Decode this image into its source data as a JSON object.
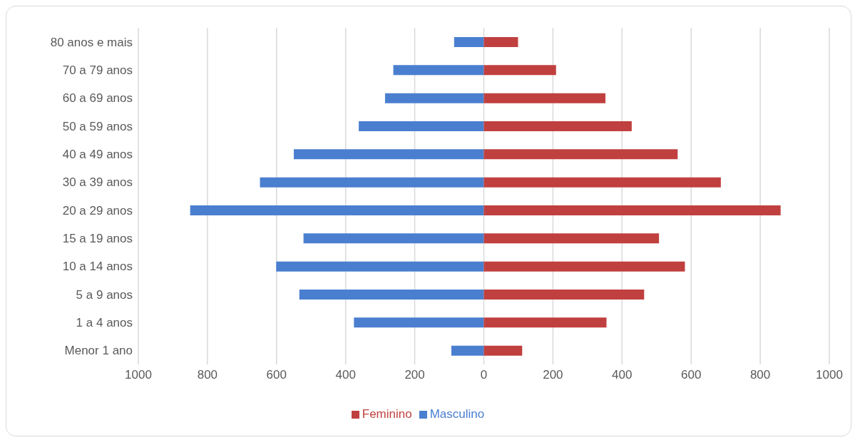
{
  "chart_data": {
    "type": "bar",
    "orientation": "horizontal",
    "stacked": true,
    "categories": [
      "80 anos e mais",
      "70 a 79 anos",
      "60 a 69 anos",
      "50 a 59 anos",
      "40 a 49 anos",
      "30 a 39 anos",
      "20 a 29 anos",
      "15 a 19 anos",
      "10 a 14 anos",
      "5 a 9 anos",
      "1 a 4 anos",
      "Menor 1 ano"
    ],
    "series": [
      {
        "name": "Masculino",
        "color": "#4a7fd0",
        "values": [
          -86,
          -262,
          -286,
          -362,
          -550,
          -648,
          -850,
          -522,
          -601,
          -534,
          -376,
          -94
        ]
      },
      {
        "name": "Feminino",
        "color": "#c0403f",
        "values": [
          99,
          209,
          352,
          428,
          561,
          686,
          859,
          507,
          582,
          464,
          355,
          111
        ]
      }
    ],
    "xlim": [
      -1000,
      1000
    ],
    "xticks": [
      {
        "value": -1000,
        "label": "1000"
      },
      {
        "value": -800,
        "label": "800"
      },
      {
        "value": -600,
        "label": "600"
      },
      {
        "value": -400,
        "label": "400"
      },
      {
        "value": -200,
        "label": "200"
      },
      0,
      200,
      400,
      600,
      800,
      1000
    ],
    "grid": "x",
    "legend": "bottom"
  }
}
